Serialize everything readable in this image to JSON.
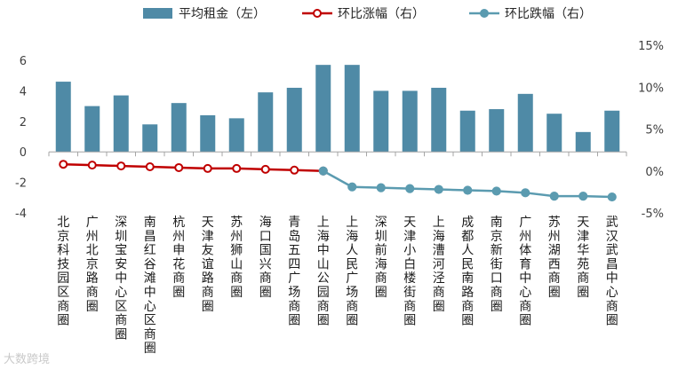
{
  "chart_data": {
    "type": "bar+line",
    "categories": [
      "北京科技园区商圈",
      "广州北京路商圈",
      "深圳宝安中心区商圈",
      "南昌红谷滩中心区商圈",
      "杭州申花商圈",
      "天津友谊路商圈",
      "苏州狮山商圈",
      "海口国兴商圈",
      "青岛五四广场商圈",
      "上海中山公园商圈",
      "上海人民广场商圈",
      "深圳前海商圈",
      "天津小白楼街商圈",
      "上海漕河泾商圈",
      "成都人民南路商圈",
      "南京新街口商圈",
      "广州体育中心商圈",
      "苏州湖西商圈",
      "天津华苑商圈",
      "武汉武昌中心商圈"
    ],
    "series": [
      {
        "name": "平均租金（左）",
        "type": "bar",
        "axis": "left",
        "color": "#4f8aa6",
        "values": [
          4.6,
          3.0,
          3.7,
          1.8,
          3.2,
          2.4,
          2.2,
          3.9,
          4.2,
          5.7,
          5.7,
          4.0,
          4.0,
          4.2,
          2.7,
          2.8,
          3.8,
          2.5,
          1.3,
          2.7
        ]
      },
      {
        "name": "环比涨幅（右）",
        "type": "line",
        "axis": "right",
        "color": "#c00000",
        "values": [
          0.8,
          0.7,
          0.6,
          0.5,
          0.4,
          0.3,
          0.3,
          0.2,
          0.1,
          0.0,
          null,
          null,
          null,
          null,
          null,
          null,
          null,
          null,
          null,
          null
        ]
      },
      {
        "name": "环比跌幅（右）",
        "type": "line",
        "axis": "right",
        "color": "#5b9bb0",
        "values": [
          null,
          null,
          null,
          null,
          null,
          null,
          null,
          null,
          null,
          0.0,
          -1.9,
          -2.0,
          -2.1,
          -2.2,
          -2.3,
          -2.4,
          -2.6,
          -3.0,
          -3.0,
          -3.1
        ]
      }
    ],
    "y_left": {
      "min": -4,
      "max": 6,
      "ticks": [
        "6",
        "4",
        "2",
        "0",
        "-2",
        "-4"
      ]
    },
    "y_right": {
      "min": -5,
      "max": 15,
      "ticks": [
        "15%",
        "10%",
        "5%",
        "0%",
        "-5%"
      ]
    },
    "legend_position": "top-center",
    "grid": false
  },
  "watermark_text": "大数跨境"
}
